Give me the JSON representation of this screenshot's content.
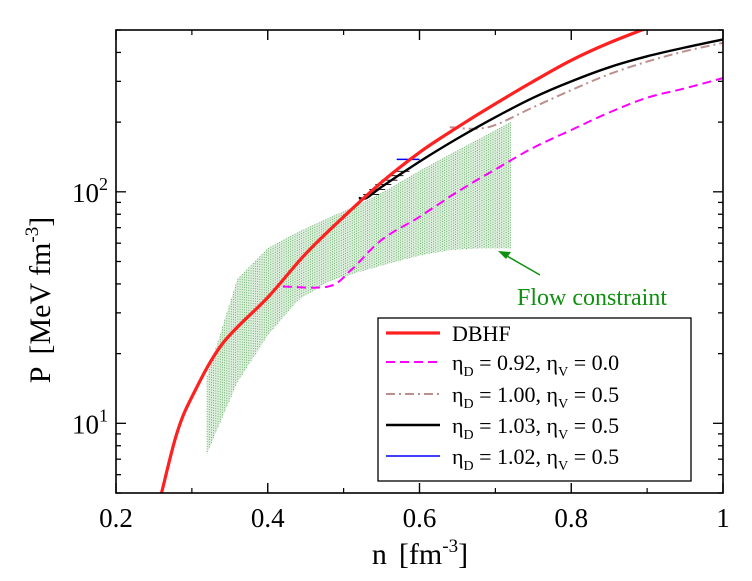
{
  "chart_data": {
    "type": "line",
    "x_axis": {
      "label": "n",
      "unit": "fm",
      "unit_exponent": "-3",
      "range": [
        0.2,
        1.0
      ],
      "ticks": [
        0.2,
        0.4,
        0.6,
        0.8,
        1.0
      ],
      "tick_labels": [
        "0.2",
        "0.4",
        "0.6",
        "0.8",
        "1"
      ]
    },
    "y_axis": {
      "label": "P",
      "unit": "MeV fm",
      "unit_exponent": "-3",
      "scale": "log",
      "range": [
        5,
        500
      ],
      "ticks": [
        10,
        100
      ],
      "tick_base": "10",
      "tick_exponents": [
        "1",
        "2"
      ]
    },
    "annotation": {
      "text": "Flow constraint",
      "color": "#109010",
      "arrow_to": [
        0.7,
        60
      ]
    },
    "flow_band": {
      "color": "#2e8b2e",
      "fill_color": "#dcefdc",
      "upper": [
        [
          0.32,
          16
        ],
        [
          0.36,
          42
        ],
        [
          0.4,
          57
        ],
        [
          0.44,
          67
        ],
        [
          0.48,
          77
        ],
        [
          0.52,
          88
        ],
        [
          0.56,
          103
        ],
        [
          0.6,
          123
        ],
        [
          0.64,
          145
        ],
        [
          0.68,
          170
        ],
        [
          0.72,
          200
        ]
      ],
      "lower": [
        [
          0.32,
          7.4
        ],
        [
          0.36,
          15
        ],
        [
          0.4,
          24
        ],
        [
          0.44,
          34
        ],
        [
          0.48,
          41
        ],
        [
          0.52,
          45
        ],
        [
          0.56,
          49
        ],
        [
          0.6,
          53
        ],
        [
          0.64,
          56
        ],
        [
          0.68,
          57
        ],
        [
          0.72,
          57
        ]
      ]
    },
    "series": [
      {
        "label_main": "DBHF",
        "label_sub": "",
        "color": "#ff2020",
        "width": 3.2,
        "dash": "",
        "points": [
          [
            0.26,
            5
          ],
          [
            0.28,
            9
          ],
          [
            0.3,
            13
          ],
          [
            0.34,
            22
          ],
          [
            0.4,
            35
          ],
          [
            0.45,
            54
          ],
          [
            0.5,
            78
          ],
          [
            0.55,
            110
          ],
          [
            0.6,
            148
          ],
          [
            0.65,
            190
          ],
          [
            0.7,
            240
          ],
          [
            0.75,
            300
          ],
          [
            0.8,
            370
          ],
          [
            0.85,
            440
          ],
          [
            0.9,
            510
          ]
        ]
      },
      {
        "label_main": "η",
        "label_sub": "D",
        "label_mid": " = 0.92, η",
        "label_sub2": "V",
        "label_end": " = 0.0",
        "color": "#ff00ff",
        "width": 2,
        "dash": "9,5",
        "points": [
          [
            0.42,
            39
          ],
          [
            0.48,
            39
          ],
          [
            0.51,
            46
          ],
          [
            0.55,
            62
          ],
          [
            0.6,
            78
          ],
          [
            0.65,
            100
          ],
          [
            0.7,
            125
          ],
          [
            0.75,
            155
          ],
          [
            0.8,
            185
          ],
          [
            0.85,
            220
          ],
          [
            0.9,
            255
          ],
          [
            0.95,
            280
          ],
          [
            1.0,
            310
          ]
        ]
      },
      {
        "label_main": "η",
        "label_sub": "D",
        "label_mid": " = 1.00, η",
        "label_sub2": "V",
        "label_end": " = 0.5",
        "color": "#bc8f8f",
        "width": 2,
        "dash": "9,4,2,4",
        "points": [
          [
            0.64,
            190
          ],
          [
            0.69,
            190
          ],
          [
            0.75,
            232
          ],
          [
            0.8,
            275
          ],
          [
            0.85,
            322
          ],
          [
            0.9,
            365
          ],
          [
            0.95,
            405
          ],
          [
            1.0,
            440
          ]
        ]
      },
      {
        "label_main": "η",
        "label_sub": "D",
        "label_mid": " = 1.03, η",
        "label_sub2": "V",
        "label_end": " = 0.5",
        "color": "#000000",
        "width": 2.4,
        "dash": "",
        "points": [
          [
            0.52,
            94
          ],
          [
            0.53,
            94
          ],
          [
            0.55,
            105
          ],
          [
            0.6,
            135
          ],
          [
            0.65,
            170
          ],
          [
            0.7,
            210
          ],
          [
            0.75,
            255
          ],
          [
            0.8,
            300
          ],
          [
            0.85,
            345
          ],
          [
            0.9,
            385
          ],
          [
            0.95,
            420
          ],
          [
            1.0,
            455
          ]
        ]
      },
      {
        "label_main": "η",
        "label_sub": "D",
        "label_mid": " = 1.02, η",
        "label_sub2": "V",
        "label_end": " = 0.5",
        "color": "#0000ff",
        "width": 1.5,
        "dash": "",
        "points": [
          [
            0.57,
            138
          ],
          [
            0.6,
            138
          ]
        ]
      }
    ],
    "legend_position": "lower-right"
  }
}
